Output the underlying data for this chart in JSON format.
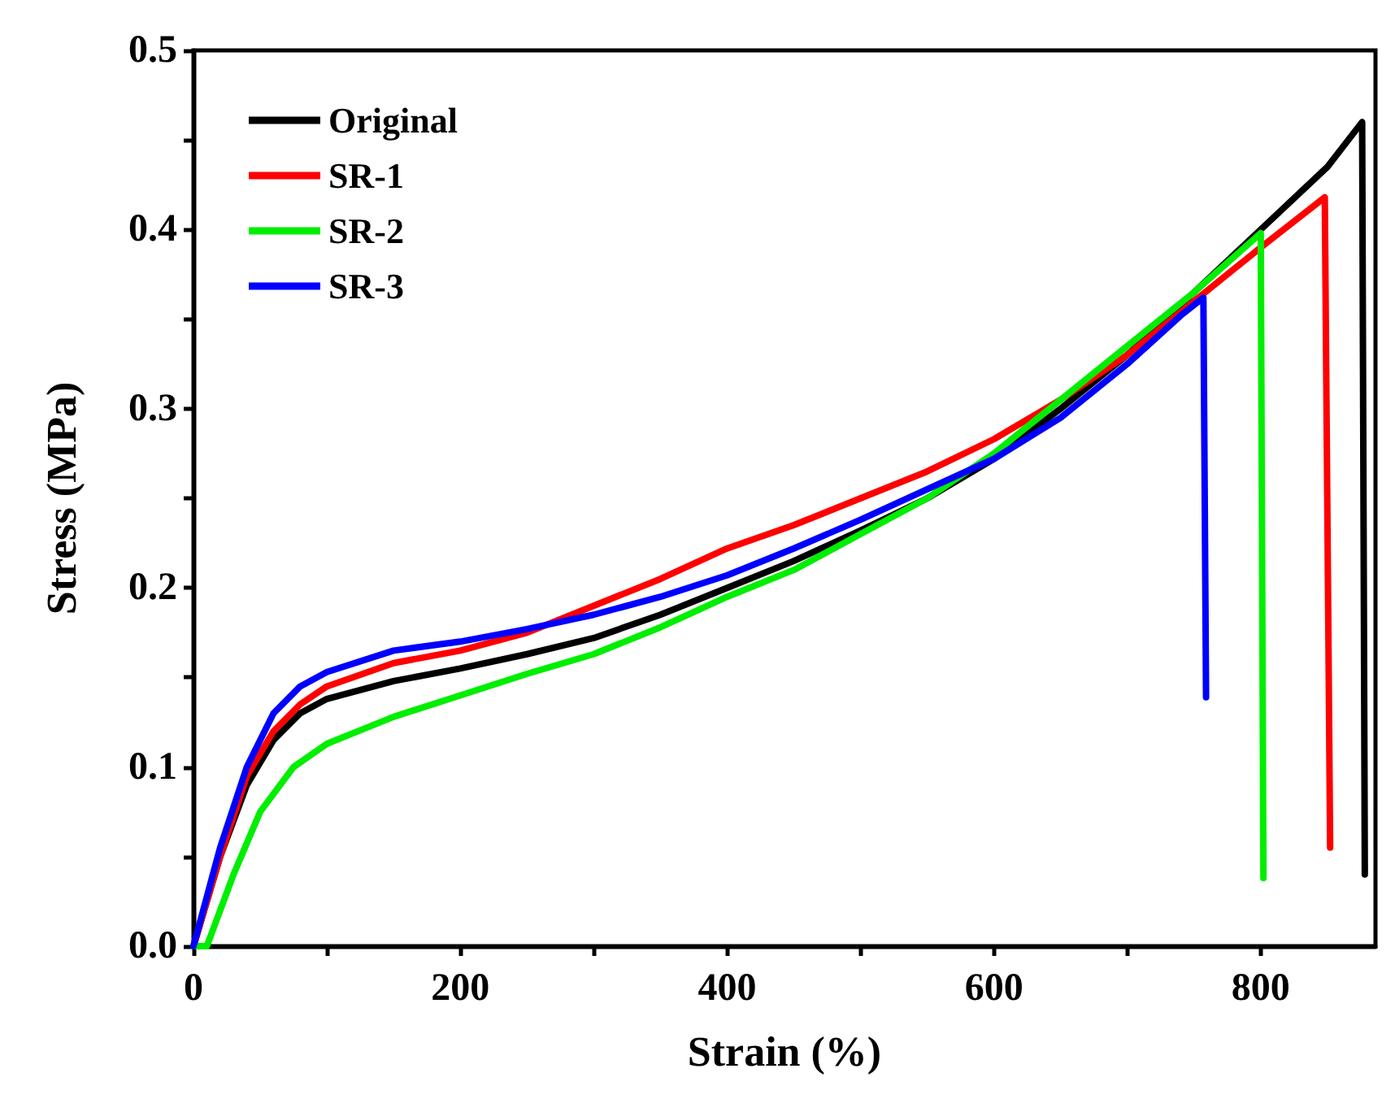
{
  "chart_data": {
    "type": "line",
    "xlabel": "Strain (%)",
    "ylabel": "Stress (MPa)",
    "xlim": [
      0,
      886
    ],
    "ylim": [
      0,
      0.5
    ],
    "xticks": [
      0,
      {
        "value": 100,
        "label": null
      },
      200,
      {
        "value": 300,
        "label": null
      },
      400,
      {
        "value": 500,
        "label": null
      },
      600,
      {
        "value": 700,
        "label": null
      },
      800
    ],
    "yticks": [
      {
        "value": 0,
        "label": "0.0"
      },
      {
        "value": 0.05,
        "label": null
      },
      0.1,
      {
        "value": 0.15,
        "label": null
      },
      0.2,
      {
        "value": 0.25,
        "label": null
      },
      0.3,
      {
        "value": 0.35,
        "label": null
      },
      0.4,
      {
        "value": 0.45,
        "label": null
      },
      0.5
    ],
    "grid": false,
    "legend": "top left",
    "marker": "none",
    "line_style": "solid",
    "series": [
      {
        "name": "Original",
        "color": "#000000",
        "x": [
          0,
          20,
          40,
          60,
          80,
          100,
          150,
          200,
          250,
          300,
          350,
          400,
          450,
          500,
          550,
          600,
          650,
          700,
          750,
          800,
          850,
          876,
          878
        ],
        "values": [
          0,
          0.05,
          0.09,
          0.115,
          0.13,
          0.138,
          0.148,
          0.155,
          0.163,
          0.172,
          0.185,
          0.2,
          0.215,
          0.232,
          0.25,
          0.272,
          0.3,
          0.33,
          0.365,
          0.4,
          0.435,
          0.46,
          0.04
        ]
      },
      {
        "name": "SR-1",
        "color": "#ff0000",
        "x": [
          0,
          20,
          40,
          60,
          80,
          100,
          150,
          200,
          250,
          300,
          350,
          400,
          450,
          500,
          550,
          600,
          650,
          700,
          750,
          800,
          848,
          852
        ],
        "values": [
          0,
          0.05,
          0.095,
          0.12,
          0.135,
          0.145,
          0.158,
          0.165,
          0.175,
          0.19,
          0.205,
          0.222,
          0.235,
          0.25,
          0.265,
          0.283,
          0.305,
          0.33,
          0.36,
          0.39,
          0.418,
          0.055
        ]
      },
      {
        "name": "SR-2",
        "color": "#00ee00",
        "x": [
          0,
          10,
          30,
          50,
          75,
          100,
          150,
          200,
          250,
          300,
          350,
          400,
          450,
          500,
          550,
          600,
          650,
          700,
          750,
          800,
          802
        ],
        "values": [
          0,
          0,
          0.04,
          0.075,
          0.1,
          0.113,
          0.128,
          0.14,
          0.152,
          0.163,
          0.178,
          0.195,
          0.21,
          0.23,
          0.25,
          0.275,
          0.305,
          0.335,
          0.365,
          0.398,
          0.038
        ]
      },
      {
        "name": "SR-3",
        "color": "#0000ff",
        "x": [
          0,
          20,
          40,
          60,
          80,
          100,
          150,
          200,
          250,
          300,
          350,
          400,
          450,
          500,
          550,
          600,
          650,
          700,
          740,
          757,
          759
        ],
        "values": [
          0,
          0.055,
          0.1,
          0.13,
          0.145,
          0.153,
          0.165,
          0.17,
          0.177,
          0.185,
          0.195,
          0.207,
          0.222,
          0.238,
          0.255,
          0.272,
          0.295,
          0.325,
          0.352,
          0.362,
          0.139
        ]
      }
    ]
  }
}
